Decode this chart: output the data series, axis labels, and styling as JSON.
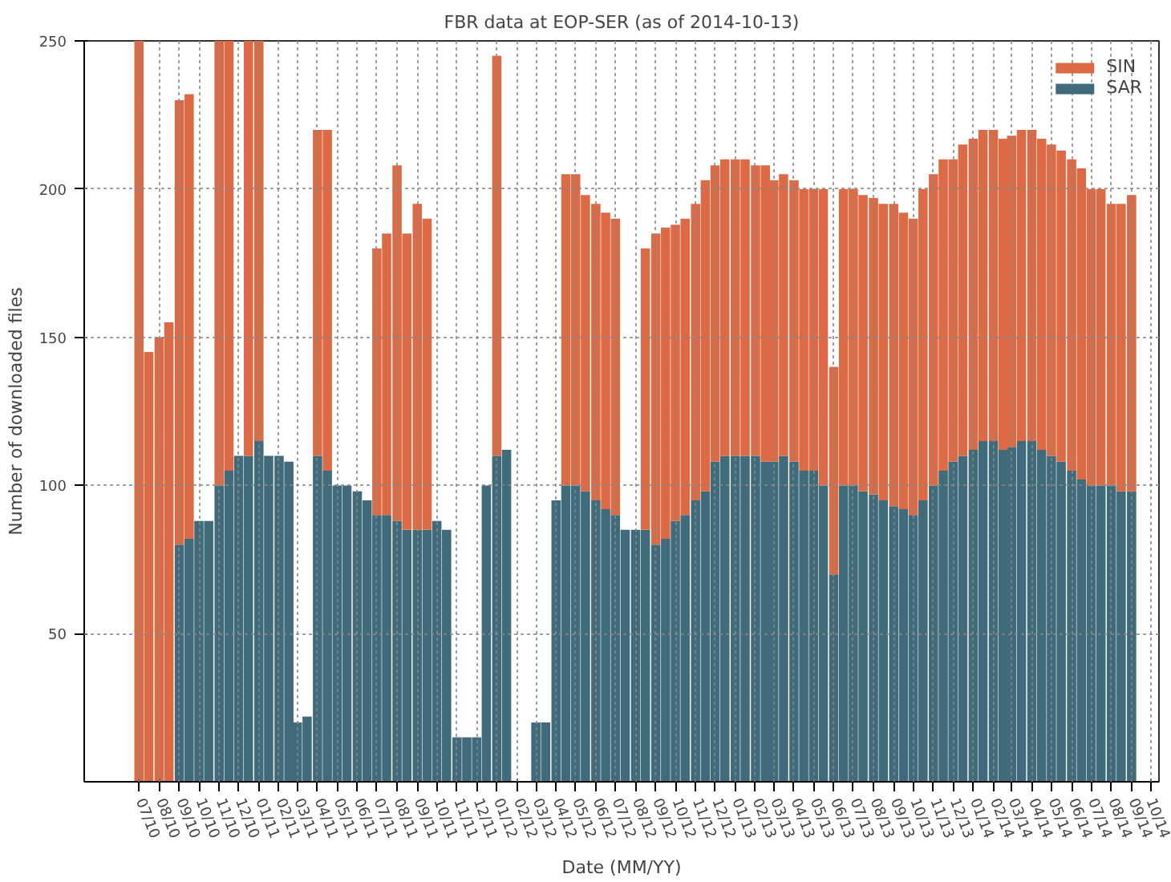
{
  "chart_data": {
    "type": "bar",
    "stacked": true,
    "title": "FBR data at EOP-SER (as of 2014-10-13)",
    "xlabel": "Date (MM/YY)",
    "ylabel": "Number of downloaded files",
    "x": [
      "2010-07-01",
      "2010-07-16",
      "2010-08-01",
      "2010-08-16",
      "2010-09-01",
      "2010-09-16",
      "2010-10-01",
      "2010-10-16",
      "2010-11-01",
      "2010-11-16",
      "2010-12-01",
      "2010-12-16",
      "2011-01-01",
      "2011-01-16",
      "2011-02-01",
      "2011-02-16",
      "2011-03-01",
      "2011-03-16",
      "2011-04-01",
      "2011-04-16",
      "2011-05-01",
      "2011-05-16",
      "2011-06-01",
      "2011-06-16",
      "2011-07-01",
      "2011-07-16",
      "2011-08-01",
      "2011-08-16",
      "2011-09-01",
      "2011-09-16",
      "2011-10-01",
      "2011-10-16",
      "2011-11-01",
      "2011-11-16",
      "2011-12-01",
      "2011-12-16",
      "2012-01-01",
      "2012-01-16",
      "2012-02-01",
      "2012-02-16",
      "2012-03-01",
      "2012-03-16",
      "2012-04-01",
      "2012-04-16",
      "2012-05-01",
      "2012-05-16",
      "2012-06-01",
      "2012-06-16",
      "2012-07-01",
      "2012-07-16",
      "2012-08-01",
      "2012-08-16",
      "2012-09-01",
      "2012-09-16",
      "2012-10-01",
      "2012-10-16",
      "2012-11-01",
      "2012-11-16",
      "2012-12-01",
      "2012-12-16",
      "2013-01-01",
      "2013-01-16",
      "2013-02-01",
      "2013-02-16",
      "2013-03-01",
      "2013-03-16",
      "2013-04-01",
      "2013-04-16",
      "2013-05-01",
      "2013-05-16",
      "2013-06-01",
      "2013-06-16",
      "2013-07-01",
      "2013-07-16",
      "2013-08-01",
      "2013-08-16",
      "2013-09-01",
      "2013-09-16",
      "2013-10-01",
      "2013-10-16",
      "2013-11-01",
      "2013-11-16",
      "2013-12-01",
      "2013-12-16",
      "2014-01-01",
      "2014-01-16",
      "2014-02-01",
      "2014-02-16",
      "2014-03-01",
      "2014-03-16",
      "2014-04-01",
      "2014-04-16",
      "2014-05-01",
      "2014-05-16",
      "2014-06-01",
      "2014-06-16",
      "2014-07-01",
      "2014-07-16",
      "2014-08-01",
      "2014-08-16",
      "2014-09-01"
    ],
    "series": [
      {
        "name": "SAR",
        "color": "#3f6b7b",
        "values": [
          0,
          0,
          0,
          0,
          80,
          82,
          88,
          88,
          100,
          105,
          110,
          110,
          115,
          110,
          110,
          108,
          20,
          22,
          110,
          105,
          100,
          100,
          98,
          95,
          90,
          90,
          88,
          85,
          85,
          85,
          88,
          85,
          15,
          15,
          15,
          100,
          110,
          112,
          0,
          0,
          20,
          20,
          95,
          100,
          100,
          98,
          95,
          92,
          90,
          85,
          85,
          85,
          80,
          82,
          88,
          90,
          95,
          98,
          108,
          110,
          110,
          110,
          110,
          108,
          108,
          110,
          108,
          105,
          105,
          100,
          70,
          100,
          100,
          98,
          97,
          95,
          93,
          92,
          90,
          95,
          100,
          105,
          108,
          110,
          112,
          115,
          115,
          112,
          113,
          115,
          115,
          112,
          110,
          108,
          105,
          102,
          100,
          100,
          100,
          98,
          98
        ]
      },
      {
        "name": "SIN",
        "color": "#dc6a45",
        "values": [
          250,
          145,
          150,
          155,
          150,
          150,
          0,
          0,
          150,
          145,
          0,
          140,
          135,
          0,
          0,
          0,
          0,
          0,
          110,
          115,
          0,
          0,
          0,
          0,
          90,
          95,
          120,
          100,
          110,
          105,
          0,
          0,
          0,
          0,
          0,
          0,
          135,
          0,
          0,
          0,
          0,
          0,
          0,
          105,
          105,
          100,
          100,
          100,
          100,
          0,
          0,
          95,
          105,
          105,
          100,
          100,
          100,
          105,
          100,
          100,
          100,
          100,
          98,
          100,
          95,
          95,
          95,
          95,
          95,
          100,
          70,
          100,
          100,
          100,
          100,
          100,
          102,
          100,
          100,
          105,
          105,
          105,
          102,
          105,
          105,
          105,
          105,
          105,
          105,
          105,
          105,
          105,
          105,
          105,
          105,
          105,
          100,
          100,
          95,
          97,
          100
        ]
      }
    ],
    "xlim": [
      "2010-04-08",
      "2014-10-13"
    ],
    "xticks": [
      {
        "value": "2010-07-01",
        "label": "07/10"
      },
      {
        "value": "2010-08-01",
        "label": "08/10"
      },
      {
        "value": "2010-09-01",
        "label": "09/10"
      },
      {
        "value": "2010-10-01",
        "label": "10/10"
      },
      {
        "value": "2010-11-01",
        "label": "11/10"
      },
      {
        "value": "2010-12-01",
        "label": "12/10"
      },
      {
        "value": "2011-01-01",
        "label": "01/11"
      },
      {
        "value": "2011-02-01",
        "label": "02/11"
      },
      {
        "value": "2011-03-01",
        "label": "03/11"
      },
      {
        "value": "2011-04-01",
        "label": "04/11"
      },
      {
        "value": "2011-05-01",
        "label": "05/11"
      },
      {
        "value": "2011-06-01",
        "label": "06/11"
      },
      {
        "value": "2011-07-01",
        "label": "07/11"
      },
      {
        "value": "2011-08-01",
        "label": "08/11"
      },
      {
        "value": "2011-09-01",
        "label": "09/11"
      },
      {
        "value": "2011-10-01",
        "label": "10/11"
      },
      {
        "value": "2011-11-01",
        "label": "11/11"
      },
      {
        "value": "2011-12-01",
        "label": "12/11"
      },
      {
        "value": "2012-01-01",
        "label": "01/12"
      },
      {
        "value": "2012-02-01",
        "label": "02/12"
      },
      {
        "value": "2012-03-01",
        "label": "03/12"
      },
      {
        "value": "2012-04-01",
        "label": "04/12"
      },
      {
        "value": "2012-05-01",
        "label": "05/12"
      },
      {
        "value": "2012-06-01",
        "label": "06/12"
      },
      {
        "value": "2012-07-01",
        "label": "07/12"
      },
      {
        "value": "2012-08-01",
        "label": "08/12"
      },
      {
        "value": "2012-09-01",
        "label": "09/12"
      },
      {
        "value": "2012-10-01",
        "label": "10/12"
      },
      {
        "value": "2012-11-01",
        "label": "11/12"
      },
      {
        "value": "2012-12-01",
        "label": "12/12"
      },
      {
        "value": "2013-01-01",
        "label": "01/13"
      },
      {
        "value": "2013-02-01",
        "label": "02/13"
      },
      {
        "value": "2013-03-01",
        "label": "03/13"
      },
      {
        "value": "2013-04-01",
        "label": "04/13"
      },
      {
        "value": "2013-05-01",
        "label": "05/13"
      },
      {
        "value": "2013-06-01",
        "label": "06/13"
      },
      {
        "value": "2013-07-01",
        "label": "07/13"
      },
      {
        "value": "2013-08-01",
        "label": "08/13"
      },
      {
        "value": "2013-09-01",
        "label": "09/13"
      },
      {
        "value": "2013-10-01",
        "label": "10/13"
      },
      {
        "value": "2013-11-01",
        "label": "11/13"
      },
      {
        "value": "2013-12-01",
        "label": "12/13"
      },
      {
        "value": "2014-01-01",
        "label": "01/14"
      },
      {
        "value": "2014-02-01",
        "label": "02/14"
      },
      {
        "value": "2014-03-01",
        "label": "03/14"
      },
      {
        "value": "2014-04-01",
        "label": "04/14"
      },
      {
        "value": "2014-05-01",
        "label": "05/14"
      },
      {
        "value": "2014-06-01",
        "label": "06/14"
      },
      {
        "value": "2014-07-01",
        "label": "07/14"
      },
      {
        "value": "2014-08-01",
        "label": "08/14"
      },
      {
        "value": "2014-09-01",
        "label": "09/14"
      },
      {
        "value": "2014-10-01",
        "label": "10/14"
      }
    ],
    "ylim": [
      0,
      250
    ],
    "yticks": [
      50,
      100,
      150,
      200,
      250
    ],
    "grid": true,
    "legend": "top right"
  }
}
